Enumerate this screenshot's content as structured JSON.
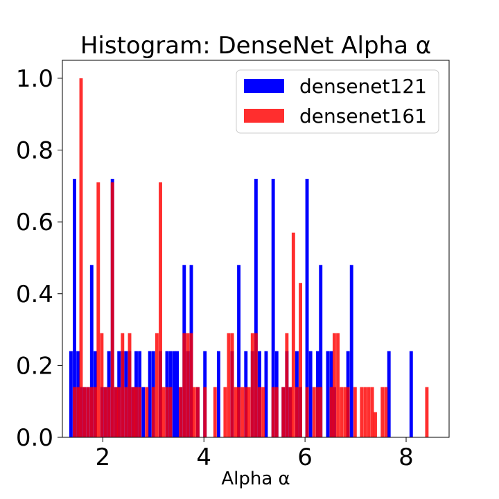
{
  "chart_data": {
    "type": "bar",
    "title": "Histogram: DenseNet Alpha α",
    "xlabel": "Alpha α",
    "ylabel": "",
    "xlim": [
      1.2,
      8.85
    ],
    "ylim": [
      0,
      1.05
    ],
    "xticks": [
      "2",
      "4",
      "6",
      "8"
    ],
    "yticks": [
      "0.0",
      "0.2",
      "0.4",
      "0.6",
      "0.8",
      "1.0"
    ],
    "bin_width": 0.067,
    "grid": false,
    "legend_position": "top-right",
    "series": [
      {
        "name": "densenet121",
        "color": "#0000ff",
        "opacity": 1.0,
        "bars": [
          [
            1.37,
            0.24
          ],
          [
            1.44,
            0.72
          ],
          [
            1.51,
            0.24
          ],
          [
            1.57,
            0.14
          ],
          [
            1.64,
            0.14
          ],
          [
            1.71,
            0.14
          ],
          [
            1.78,
            0.48
          ],
          [
            1.85,
            0.24
          ],
          [
            1.98,
            0.14
          ],
          [
            2.05,
            0.14
          ],
          [
            2.12,
            0.24
          ],
          [
            2.19,
            0.72
          ],
          [
            2.26,
            0.14
          ],
          [
            2.32,
            0.24
          ],
          [
            2.39,
            0.24
          ],
          [
            2.46,
            0.24
          ],
          [
            2.53,
            0.24
          ],
          [
            2.6,
            0.14
          ],
          [
            2.66,
            0.24
          ],
          [
            2.73,
            0.24
          ],
          [
            2.8,
            0.14
          ],
          [
            2.93,
            0.24
          ],
          [
            3.0,
            0.24
          ],
          [
            3.14,
            0.24
          ],
          [
            3.27,
            0.24
          ],
          [
            3.34,
            0.24
          ],
          [
            3.41,
            0.24
          ],
          [
            3.47,
            0.24
          ],
          [
            3.54,
            0.14
          ],
          [
            3.61,
            0.48
          ],
          [
            3.68,
            0.24
          ],
          [
            3.75,
            0.48
          ],
          [
            3.88,
            0.14
          ],
          [
            4.02,
            0.24
          ],
          [
            4.29,
            0.24
          ],
          [
            4.56,
            0.24
          ],
          [
            4.69,
            0.48
          ],
          [
            4.83,
            0.24
          ],
          [
            4.96,
            0.24
          ],
          [
            5.03,
            0.72
          ],
          [
            5.1,
            0.24
          ],
          [
            5.23,
            0.24
          ],
          [
            5.37,
            0.72
          ],
          [
            5.44,
            0.24
          ],
          [
            5.57,
            0.14
          ],
          [
            5.64,
            0.24
          ],
          [
            5.71,
            0.14
          ],
          [
            5.84,
            0.24
          ],
          [
            5.91,
            0.14
          ],
          [
            6.04,
            0.72
          ],
          [
            6.11,
            0.24
          ],
          [
            6.25,
            0.24
          ],
          [
            6.31,
            0.48
          ],
          [
            6.45,
            0.24
          ],
          [
            6.52,
            0.24
          ],
          [
            6.58,
            0.14
          ],
          [
            6.85,
            0.24
          ],
          [
            6.92,
            0.48
          ],
          [
            7.66,
            0.24
          ],
          [
            8.1,
            0.24
          ]
        ]
      },
      {
        "name": "densenet161",
        "color": "#ff0000",
        "opacity": 0.82,
        "bars": [
          [
            1.44,
            0.14
          ],
          [
            1.51,
            0.14
          ],
          [
            1.57,
            1.0
          ],
          [
            1.64,
            0.14
          ],
          [
            1.71,
            0.14
          ],
          [
            1.78,
            0.14
          ],
          [
            1.85,
            0.14
          ],
          [
            1.91,
            0.71
          ],
          [
            1.98,
            0.29
          ],
          [
            2.05,
            0.14
          ],
          [
            2.12,
            0.14
          ],
          [
            2.19,
            0.71
          ],
          [
            2.26,
            0.14
          ],
          [
            2.32,
            0.14
          ],
          [
            2.39,
            0.29
          ],
          [
            2.46,
            0.14
          ],
          [
            2.53,
            0.29
          ],
          [
            2.6,
            0.14
          ],
          [
            2.66,
            0.14
          ],
          [
            2.73,
            0.14
          ],
          [
            2.87,
            0.14
          ],
          [
            3.0,
            0.14
          ],
          [
            3.07,
            0.29
          ],
          [
            3.14,
            0.71
          ],
          [
            3.2,
            0.14
          ],
          [
            3.27,
            0.14
          ],
          [
            3.34,
            0.14
          ],
          [
            3.54,
            0.14
          ],
          [
            3.61,
            0.29
          ],
          [
            3.68,
            0.29
          ],
          [
            3.75,
            0.29
          ],
          [
            3.81,
            0.14
          ],
          [
            3.88,
            0.14
          ],
          [
            4.02,
            0.14
          ],
          [
            4.22,
            0.14
          ],
          [
            4.42,
            0.14
          ],
          [
            4.49,
            0.29
          ],
          [
            4.56,
            0.29
          ],
          [
            4.63,
            0.14
          ],
          [
            4.69,
            0.14
          ],
          [
            4.76,
            0.14
          ],
          [
            4.83,
            0.14
          ],
          [
            4.89,
            0.14
          ],
          [
            4.96,
            0.29
          ],
          [
            5.03,
            0.29
          ],
          [
            5.1,
            0.14
          ],
          [
            5.17,
            0.14
          ],
          [
            5.37,
            0.14
          ],
          [
            5.44,
            0.14
          ],
          [
            5.57,
            0.14
          ],
          [
            5.64,
            0.29
          ],
          [
            5.71,
            0.14
          ],
          [
            5.77,
            0.57
          ],
          [
            5.84,
            0.14
          ],
          [
            5.91,
            0.43
          ],
          [
            6.04,
            0.14
          ],
          [
            6.18,
            0.14
          ],
          [
            6.25,
            0.14
          ],
          [
            6.31,
            0.14
          ],
          [
            6.52,
            0.14
          ],
          [
            6.58,
            0.29
          ],
          [
            6.65,
            0.29
          ],
          [
            6.72,
            0.14
          ],
          [
            6.79,
            0.14
          ],
          [
            6.85,
            0.14
          ],
          [
            6.99,
            0.14
          ],
          [
            7.12,
            0.14
          ],
          [
            7.19,
            0.14
          ],
          [
            7.26,
            0.14
          ],
          [
            7.33,
            0.14
          ],
          [
            7.39,
            0.07
          ],
          [
            7.53,
            0.14
          ],
          [
            7.6,
            0.14
          ],
          [
            8.41,
            0.14
          ]
        ]
      }
    ]
  }
}
